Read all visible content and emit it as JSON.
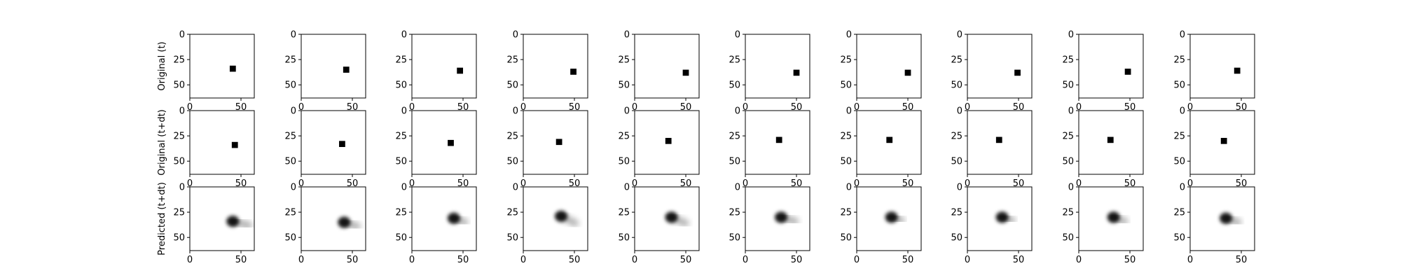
{
  "figure": {
    "row_labels": [
      "Original (t)",
      "Original (t+dt)",
      "Predicted (t+dt)"
    ]
  },
  "chart_data": {
    "type": "image-grid",
    "axis_range": [
      0,
      63
    ],
    "x_ticks": [
      0,
      50
    ],
    "y_ticks": [
      0,
      25,
      50
    ],
    "grid": false,
    "legend": "none",
    "rows": [
      {
        "label": "Original (t)",
        "kind": "square",
        "square_size": 6,
        "centers": [
          [
            42,
            34
          ],
          [
            44,
            35
          ],
          [
            47,
            36
          ],
          [
            49,
            37
          ],
          [
            50,
            38
          ],
          [
            50,
            38
          ],
          [
            50,
            38
          ],
          [
            49,
            38
          ],
          [
            48,
            37
          ],
          [
            46,
            36
          ]
        ]
      },
      {
        "label": "Original (t+dt)",
        "kind": "square",
        "square_size": 6,
        "centers": [
          [
            44,
            34
          ],
          [
            40,
            33
          ],
          [
            38,
            32
          ],
          [
            35,
            31
          ],
          [
            33,
            30
          ],
          [
            33,
            29
          ],
          [
            32,
            29
          ],
          [
            31,
            29
          ],
          [
            31,
            29
          ],
          [
            33,
            30
          ]
        ]
      },
      {
        "label": "Predicted (t+dt)",
        "kind": "blob",
        "centers": [
          [
            42,
            34
          ],
          [
            42,
            35
          ],
          [
            41,
            31
          ],
          [
            37,
            29
          ],
          [
            36,
            30
          ],
          [
            35,
            30
          ],
          [
            34,
            30
          ],
          [
            34,
            30
          ],
          [
            34,
            30
          ],
          [
            35,
            31
          ]
        ],
        "tails": [
          [
            58,
            38
          ],
          [
            55,
            39
          ],
          [
            52,
            35
          ],
          [
            51,
            36
          ],
          [
            50,
            36
          ],
          [
            49,
            34
          ],
          [
            44,
            33
          ],
          [
            44,
            33
          ],
          [
            45,
            34
          ],
          [
            47,
            35
          ]
        ]
      }
    ]
  }
}
